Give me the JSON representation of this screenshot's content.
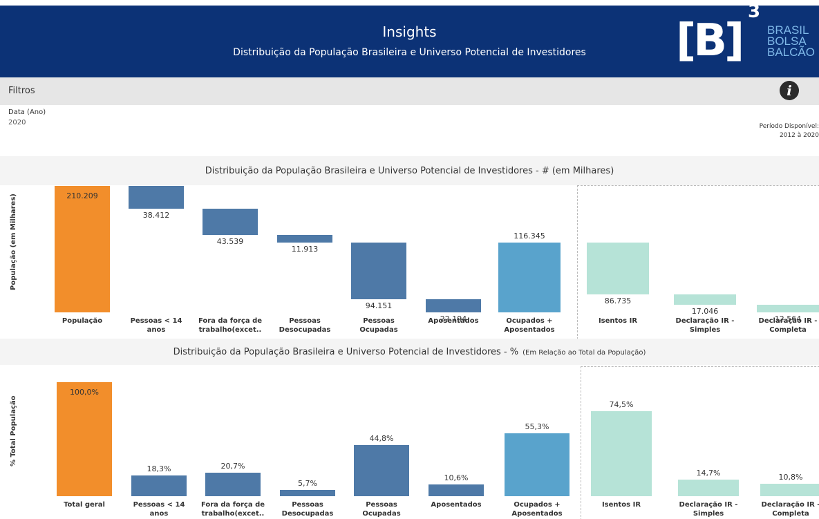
{
  "header": {
    "title": "Insights",
    "subtitle": "Distribuição da População Brasileira e Universo Potencial de Investidores",
    "logo": {
      "mark": "[B]",
      "superscript": "3",
      "lines": [
        "BRASIL",
        "BOLSA",
        "BALCÃO"
      ]
    }
  },
  "filters": {
    "title": "Filtros",
    "field_label": "Data (Ano)",
    "field_value": "2020",
    "period_label": "Período Disponível:",
    "period_value": "2012 à 2020"
  },
  "chart_data": [
    {
      "type": "waterfall",
      "title": "Distribuição da População Brasileira e Universo Potencial de Investidores - # (em Milhares)",
      "y_label": "População (em Milhares)",
      "categories": [
        "População",
        "Pessoas < 14 anos",
        "Fora da força de trabalho(excet..",
        "Pessoas Desocupadas",
        "Pessoas Ocupadas",
        "Aposentados",
        "Ocupados + Aposentados",
        "Isentos IR",
        "Declaração IR - Simples",
        "Declaração IR - Completa"
      ],
      "values": [
        210209,
        38412,
        43539,
        11913,
        94151,
        22194,
        116345,
        86735,
        17046,
        12564
      ],
      "value_labels": [
        "210.209",
        "38.412",
        "43.539",
        "11.913",
        "94.151",
        "22.194",
        "116.345",
        "86.735",
        "17.046",
        "12.564"
      ],
      "measures": [
        "absolute",
        "relative",
        "relative",
        "relative",
        "relative",
        "relative",
        "absolute",
        "relative",
        "relative",
        "relative"
      ],
      "colors": [
        "#f28e2b",
        "#4e79a7",
        "#4e79a7",
        "#4e79a7",
        "#4e79a7",
        "#4e79a7",
        "#59a3cc",
        "#b6e3d7",
        "#b6e3d7",
        "#b6e3d7"
      ],
      "ylim": [
        0,
        210209
      ]
    },
    {
      "type": "bar",
      "title": "Distribuição da População Brasileira e Universo Potencial de Investidores - %",
      "title_note": "(Em Relação ao Total da População)",
      "y_label": "% Total População",
      "categories": [
        "Total geral",
        "Pessoas < 14 anos",
        "Fora da força de trabalho(excet..",
        "Pessoas Desocupadas",
        "Pessoas Ocupadas",
        "Aposentados",
        "Ocupados + Aposentados",
        "Isentos IR",
        "Declaração IR - Simples",
        "Declaração IR - Completa"
      ],
      "values": [
        100,
        18.3,
        20.7,
        5.7,
        44.8,
        10.6,
        55.3,
        74.5,
        14.7,
        10.8
      ],
      "value_labels": [
        "100,0%",
        "18,3%",
        "20,7%",
        "5,7%",
        "44,8%",
        "10,6%",
        "55,3%",
        "74,5%",
        "14,7%",
        "10,8%"
      ],
      "colors": [
        "#f28e2b",
        "#4e79a7",
        "#4e79a7",
        "#4e79a7",
        "#4e79a7",
        "#4e79a7",
        "#59a3cc",
        "#b6e3d7",
        "#b6e3d7",
        "#b6e3d7"
      ],
      "ylim": [
        0,
        100
      ]
    }
  ]
}
